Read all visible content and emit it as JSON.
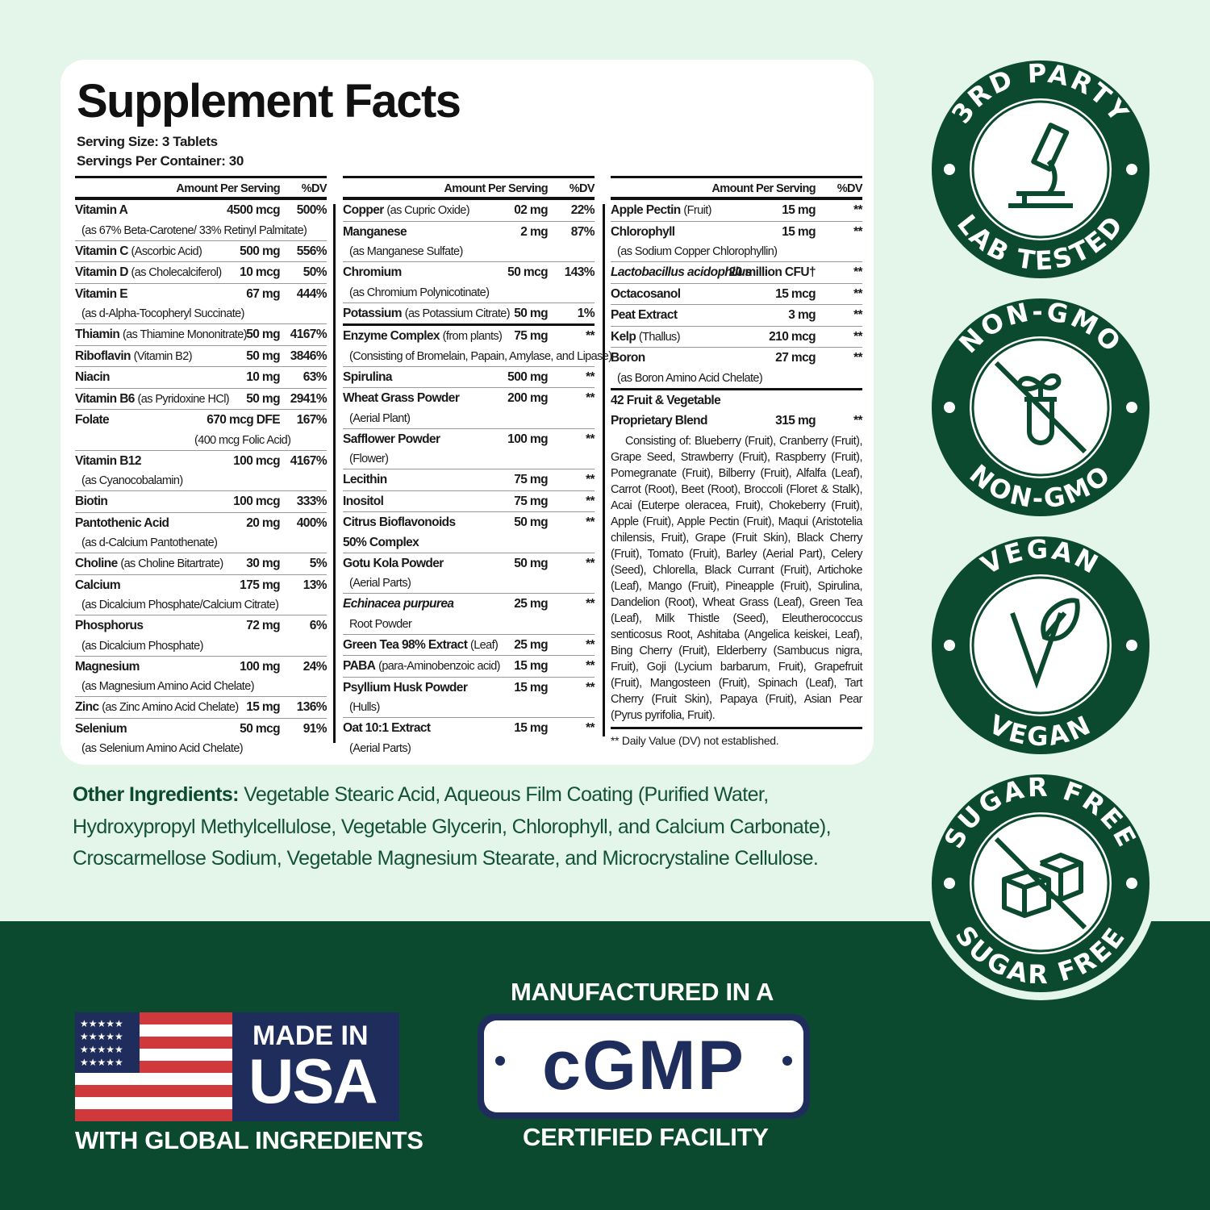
{
  "title": "Supplement Facts",
  "serving_size": "Serving Size: 3 Tablets",
  "servings_per_container": "Servings Per Container: 30",
  "header": {
    "amount": "Amount Per Serving",
    "dv": "%DV"
  },
  "columns": [
    {
      "rows": [
        {
          "name": "Vitamin A",
          "amount": "4500 mcg",
          "dv": "500%",
          "sub": "(as 67% Beta-Carotene/ 33% Retinyl Palmitate)"
        },
        {
          "name": "Vitamin C",
          "note": "(Ascorbic Acid)",
          "amount": "500 mg",
          "dv": "556%"
        },
        {
          "name": "Vitamin D",
          "note": "(as Cholecalciferol)",
          "amount": "10 mcg",
          "dv": "50%"
        },
        {
          "name": "Vitamin E",
          "amount": "67 mg",
          "dv": "444%",
          "sub": "(as d-Alpha-Tocopheryl Succinate)"
        },
        {
          "name": "Thiamin",
          "note": "(as Thiamine Mononitrate)",
          "amount": "50 mg",
          "dv": "4167%"
        },
        {
          "name": "Riboflavin",
          "note": "(Vitamin B2)",
          "amount": "50 mg",
          "dv": "3846%"
        },
        {
          "name": "Niacin",
          "amount": "10 mg",
          "dv": "63%"
        },
        {
          "name": "Vitamin B6",
          "note": "(as Pyridoxine HCl)",
          "amount": "50 mg",
          "dv": "2941%"
        },
        {
          "name": "Folate",
          "amount": "670 mcg DFE",
          "dv": "167%",
          "sub": "(400 mcg Folic Acid)",
          "subright": true
        },
        {
          "name": "Vitamin B12",
          "amount": "100 mcg",
          "dv": "4167%",
          "sub": "(as Cyanocobalamin)"
        },
        {
          "name": "Biotin",
          "amount": "100 mcg",
          "dv": "333%"
        },
        {
          "name": "Pantothenic Acid",
          "amount": "20 mg",
          "dv": "400%",
          "sub": "(as d-Calcium Pantothenate)"
        },
        {
          "name": "Choline",
          "note": "(as Choline Bitartrate)",
          "amount": "30 mg",
          "dv": "5%"
        },
        {
          "name": "Calcium",
          "amount": "175 mg",
          "dv": "13%",
          "sub": "(as Dicalcium Phosphate/Calcium Citrate)"
        },
        {
          "name": "Phosphorus",
          "amount": "72 mg",
          "dv": "6%",
          "sub": "(as Dicalcium Phosphate)"
        },
        {
          "name": "Magnesium",
          "amount": "100 mg",
          "dv": "24%",
          "sub": "(as Magnesium Amino Acid Chelate)"
        },
        {
          "name": "Zinc",
          "note": "(as Zinc Amino Acid Chelate)",
          "amount": "15 mg",
          "dv": "136%"
        },
        {
          "name": "Selenium",
          "amount": "50 mcg",
          "dv": "91%",
          "sub": "(as Selenium Amino Acid Chelate)"
        }
      ]
    },
    {
      "rows": [
        {
          "name": "Copper",
          "note": "(as Cupric Oxide)",
          "amount": "02 mg",
          "dv": "22%"
        },
        {
          "name": "Manganese",
          "amount": "2 mg",
          "dv": "87%",
          "sub": "(as Manganese Sulfate)"
        },
        {
          "name": "Chromium",
          "amount": "50 mcg",
          "dv": "143%",
          "sub": "(as Chromium Polynicotinate)"
        },
        {
          "name": "Potassium",
          "note": "(as Potassium Citrate)",
          "amount": "50 mg",
          "dv": "1%"
        },
        {
          "name": "Enzyme Complex",
          "note": "(from plants)",
          "amount": "75 mg",
          "dv": "**",
          "sub": "(Consisting of Bromelain, Papain, Amylase, and Lipase)",
          "thick": true
        },
        {
          "name": "Spirulina",
          "amount": "500 mg",
          "dv": "**"
        },
        {
          "name": "Wheat Grass Powder",
          "amount": "200 mg",
          "dv": "**",
          "sub": "(Aerial Plant)"
        },
        {
          "name": "Safflower Powder",
          "amount": "100 mg",
          "dv": "**",
          "sub": "(Flower)"
        },
        {
          "name": "Lecithin",
          "amount": "75 mg",
          "dv": "**"
        },
        {
          "name": "Inositol",
          "amount": "75 mg",
          "dv": "**"
        },
        {
          "name": "Citrus Bioflavonoids",
          "amount": "50 mg",
          "dv": "**",
          "sub": "50% Complex",
          "subbold": true
        },
        {
          "name": "Gotu Kola Powder",
          "amount": "50 mg",
          "dv": "**",
          "sub": "(Aerial Parts)"
        },
        {
          "name": "Echinacea purpurea",
          "italic": true,
          "amount": "25 mg",
          "dv": "**",
          "sub": "Root Powder"
        },
        {
          "name": "Green Tea 98% Extract",
          "note": "(Leaf)",
          "amount": "25 mg",
          "dv": "**"
        },
        {
          "name": "PABA",
          "note": "(para-Aminobenzoic acid)",
          "amount": "15 mg",
          "dv": "**"
        },
        {
          "name": "Psyllium Husk Powder",
          "amount": "15 mg",
          "dv": "**",
          "sub": "(Hulls)"
        },
        {
          "name": "Oat 10:1 Extract",
          "amount": "15 mg",
          "dv": "**",
          "sub": "(Aerial Parts)"
        }
      ]
    },
    {
      "rows": [
        {
          "name": "Apple Pectin",
          "note": "(Fruit)",
          "amount": "15 mg",
          "dv": "**"
        },
        {
          "name": "Chlorophyll",
          "amount": "15 mg",
          "dv": "**",
          "sub": "(as Sodium Copper Chlorophyllin)"
        },
        {
          "name": "Lactobacillus acidophilus",
          "italic": true,
          "amount": "20 million CFU†",
          "dv": "**"
        },
        {
          "name": "Octacosanol",
          "amount": "15 mcg",
          "dv": "**"
        },
        {
          "name": "Peat Extract",
          "amount": "3 mg",
          "dv": "**"
        },
        {
          "name": "Kelp",
          "note": "(Thallus)",
          "amount": "210 mcg",
          "dv": "**"
        },
        {
          "name": "Boron",
          "amount": "27 mcg",
          "dv": "**",
          "sub": "(as Boron Amino Acid Chelate)"
        },
        {
          "name": "42 Fruit & Vegetable",
          "name2": "Proprietary Blend",
          "amount": "315 mg",
          "dv": "**",
          "thick": true
        }
      ],
      "blend": "Consisting of: Blueberry (Fruit), Cranberry (Fruit), Grape Seed, Strawberry (Fruit), Raspberry (Fruit), Pomegranate (Fruit), Bilberry (Fruit), Alfalfa (Leaf), Carrot (Root), Beet (Root), Broccoli (Floret & Stalk), Acai (Euterpe oleracea, Fruit), Chokeberry (Fruit), Apple (Fruit), Apple Pectin (Fruit), Maqui (Aristotelia chilensis, Fruit), Grape (Fruit Skin), Black Cherry (Fruit), Tomato (Fruit), Barley (Aerial Part), Celery (Seed), Chlorella, Black Currant (Fruit), Artichoke (Leaf), Mango (Fruit), Pineapple (Fruit), Spirulina, Dandelion (Root), Wheat Grass (Leaf), Green Tea (Leaf), Milk Thistle (Seed), Eleutherococcus senticosus Root, Ashitaba (Angelica keiskei, Leaf), Bing Cherry (Fruit), Elderberry (Sambucus nigra, Fruit), Goji (Lycium barbarum, Fruit), Grapefruit (Fruit), Mangosteen (Fruit), Spinach (Leaf), Tart Cherry (Fruit Skin), Papaya (Fruit), Asian Pear (Pyrus pyrifolia, Fruit).",
      "footnote": "** Daily Value (DV) not established."
    }
  ],
  "other_ingredients": {
    "label": "Other Ingredients:",
    "text": " Vegetable Stearic Acid, Aqueous Film Coating (Purified Water, Hydroxypropyl Methylcellulose, Vegetable Glycerin, Chlorophyll, and Calcium Carbonate), Croscarmellose Sodium, Vegetable Magnesium Stearate, and Microcrystaline Cellulose."
  },
  "badges": [
    {
      "top": "3RD PARTY",
      "bottom": "LAB TESTED",
      "icon": "microscope-icon"
    },
    {
      "top": "NON-GMO",
      "bottom": "NON-GMO",
      "icon": "no-gmo-plant-tube-icon"
    },
    {
      "top": "VEGAN",
      "bottom": "VEGAN",
      "icon": "vegan-leaf-icon"
    },
    {
      "top": "SUGAR FREE",
      "bottom": "SUGAR FREE",
      "icon": "no-sugar-cubes-icon"
    }
  ],
  "usa": {
    "line1": "MADE IN",
    "line2": "USA",
    "caption": "WITH GLOBAL INGREDIENTS"
  },
  "cgmp": {
    "top": "MANUFACTURED IN A",
    "logo": "cGMP",
    "bottom": "CERTIFIED FACILITY"
  },
  "colors": {
    "green_dark": "#0c4a2f",
    "mint": "#e3f6e9",
    "navy": "#1f2d5c",
    "flag_red": "#d0393c"
  }
}
